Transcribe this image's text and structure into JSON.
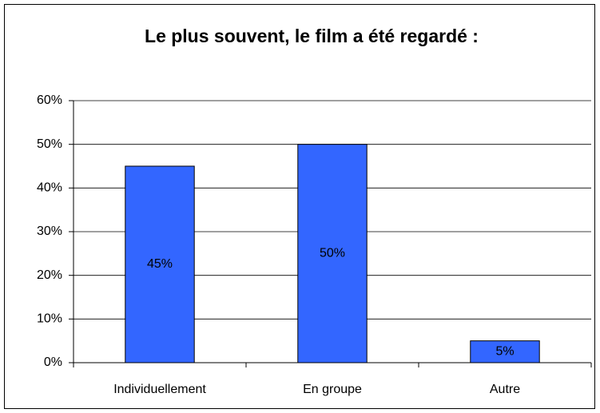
{
  "chart_data": {
    "type": "bar",
    "title": "Le plus souvent, le film a été regardé :",
    "categories": [
      "Individuellement",
      "En groupe",
      "Autre"
    ],
    "values": [
      45,
      50,
      5
    ],
    "value_labels": [
      "45%",
      "50%",
      "5%"
    ],
    "color": "#3366ff",
    "ylim": [
      0,
      60
    ],
    "yticks": [
      {
        "value": 0,
        "label": "0%"
      },
      {
        "value": 10,
        "label": "10%"
      },
      {
        "value": 20,
        "label": "20%"
      },
      {
        "value": 30,
        "label": "30%"
      },
      {
        "value": 40,
        "label": "40%"
      },
      {
        "value": 50,
        "label": "50%"
      },
      {
        "value": 60,
        "label": "60%"
      }
    ],
    "grid": true
  }
}
